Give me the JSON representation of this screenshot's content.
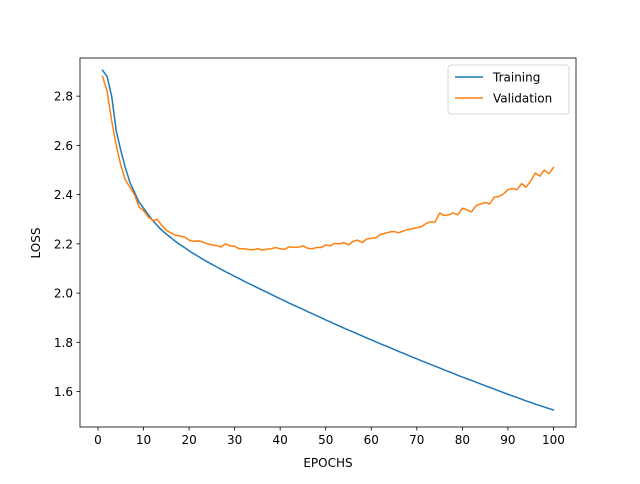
{
  "chart_data": {
    "type": "line",
    "title": "",
    "xlabel": "EPOCHS",
    "ylabel": "LOSS",
    "xlim": [
      -3.95,
      104.95
    ],
    "ylim": [
      1.456,
      2.955
    ],
    "xticks": [
      0,
      10,
      20,
      30,
      40,
      50,
      60,
      70,
      80,
      90,
      100
    ],
    "xtick_labels": [
      "0",
      "10",
      "20",
      "30",
      "40",
      "50",
      "60",
      "70",
      "80",
      "90",
      "100"
    ],
    "yticks": [
      1.6,
      1.8,
      2.0,
      2.2,
      2.4,
      2.6,
      2.8
    ],
    "ytick_labels": [
      "1.6",
      "1.8",
      "2.0",
      "2.2",
      "2.4",
      "2.6",
      "2.8"
    ],
    "grid": false,
    "legend_position": "top-right",
    "series": [
      {
        "name": "Training",
        "color": "#1f77b4",
        "x": [
          1,
          2,
          3,
          4,
          5,
          6,
          7,
          8,
          9,
          10,
          11,
          12,
          13,
          14,
          15,
          16,
          17,
          18,
          19,
          20,
          21,
          22,
          23,
          24,
          25,
          26,
          27,
          28,
          29,
          30,
          31,
          32,
          33,
          34,
          35,
          36,
          37,
          38,
          39,
          40,
          41,
          42,
          43,
          44,
          45,
          46,
          47,
          48,
          49,
          50,
          51,
          52,
          53,
          54,
          55,
          56,
          57,
          58,
          59,
          60,
          61,
          62,
          63,
          64,
          65,
          66,
          67,
          68,
          69,
          70,
          71,
          72,
          73,
          74,
          75,
          76,
          77,
          78,
          79,
          80,
          81,
          82,
          83,
          84,
          85,
          86,
          87,
          88,
          89,
          90,
          91,
          92,
          93,
          94,
          95,
          96,
          97,
          98,
          99,
          100
        ],
        "y": [
          2.905,
          2.88,
          2.8,
          2.66,
          2.58,
          2.51,
          2.45,
          2.41,
          2.37,
          2.345,
          2.32,
          2.295,
          2.275,
          2.255,
          2.24,
          2.225,
          2.21,
          2.197,
          2.185,
          2.172,
          2.16,
          2.149,
          2.138,
          2.127,
          2.117,
          2.107,
          2.097,
          2.087,
          2.078,
          2.068,
          2.059,
          2.049,
          2.04,
          2.031,
          2.022,
          2.013,
          2.004,
          1.995,
          1.986,
          1.977,
          1.968,
          1.959,
          1.951,
          1.942,
          1.934,
          1.925,
          1.917,
          1.908,
          1.9,
          1.891,
          1.883,
          1.874,
          1.866,
          1.858,
          1.85,
          1.842,
          1.834,
          1.826,
          1.818,
          1.81,
          1.802,
          1.794,
          1.787,
          1.779,
          1.771,
          1.763,
          1.756,
          1.748,
          1.74,
          1.733,
          1.725,
          1.718,
          1.71,
          1.703,
          1.696,
          1.688,
          1.681,
          1.674,
          1.666,
          1.659,
          1.652,
          1.645,
          1.638,
          1.631,
          1.624,
          1.617,
          1.61,
          1.603,
          1.596,
          1.589,
          1.582,
          1.576,
          1.569,
          1.562,
          1.556,
          1.549,
          1.543,
          1.537,
          1.531,
          1.525
        ]
      },
      {
        "name": "Validation",
        "color": "#ff7f0e",
        "x": [
          1,
          2,
          3,
          4,
          5,
          6,
          7,
          8,
          9,
          10,
          11,
          12,
          13,
          14,
          15,
          16,
          17,
          18,
          19,
          20,
          21,
          22,
          23,
          24,
          25,
          26,
          27,
          28,
          29,
          30,
          31,
          32,
          33,
          34,
          35,
          36,
          37,
          38,
          39,
          40,
          41,
          42,
          43,
          44,
          45,
          46,
          47,
          48,
          49,
          50,
          51,
          52,
          53,
          54,
          55,
          56,
          57,
          58,
          59,
          60,
          61,
          62,
          63,
          64,
          65,
          66,
          67,
          68,
          69,
          70,
          71,
          72,
          73,
          74,
          75,
          76,
          77,
          78,
          79,
          80,
          81,
          82,
          83,
          84,
          85,
          86,
          87,
          88,
          89,
          90,
          91,
          92,
          93,
          94,
          95,
          96,
          97,
          98,
          99,
          100
        ],
        "y": [
          2.88,
          2.82,
          2.7,
          2.6,
          2.52,
          2.46,
          2.43,
          2.4,
          2.35,
          2.335,
          2.31,
          2.295,
          2.3,
          2.275,
          2.255,
          2.245,
          2.235,
          2.232,
          2.228,
          2.215,
          2.21,
          2.212,
          2.208,
          2.2,
          2.196,
          2.193,
          2.187,
          2.2,
          2.192,
          2.19,
          2.18,
          2.18,
          2.177,
          2.176,
          2.18,
          2.175,
          2.178,
          2.18,
          2.185,
          2.18,
          2.178,
          2.188,
          2.186,
          2.186,
          2.192,
          2.182,
          2.18,
          2.185,
          2.185,
          2.196,
          2.192,
          2.202,
          2.2,
          2.205,
          2.196,
          2.21,
          2.215,
          2.205,
          2.22,
          2.222,
          2.225,
          2.238,
          2.243,
          2.248,
          2.25,
          2.245,
          2.252,
          2.258,
          2.262,
          2.265,
          2.27,
          2.282,
          2.29,
          2.288,
          2.325,
          2.315,
          2.318,
          2.325,
          2.318,
          2.345,
          2.338,
          2.33,
          2.355,
          2.362,
          2.368,
          2.362,
          2.39,
          2.392,
          2.402,
          2.42,
          2.425,
          2.42,
          2.445,
          2.43,
          2.455,
          2.488,
          2.475,
          2.5,
          2.485,
          2.51
        ]
      }
    ]
  }
}
